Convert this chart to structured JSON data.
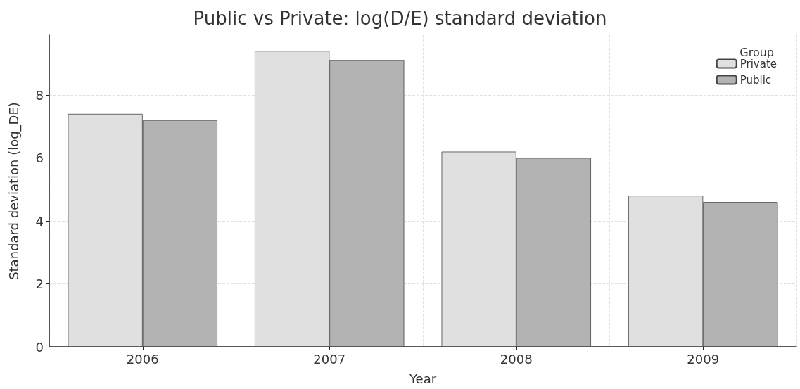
{
  "chart_data": {
    "type": "bar",
    "title": "Public vs Private: log(D/E) standard deviation",
    "xlabel": "Year",
    "ylabel": "Standard deviation (log_DE)",
    "legend_title": "Group",
    "categories": [
      "2006",
      "2007",
      "2008",
      "2009"
    ],
    "series": [
      {
        "name": "Private",
        "color": "#e0e0e0",
        "values": [
          7.4,
          9.4,
          6.2,
          4.8
        ]
      },
      {
        "name": "Public",
        "color": "#b3b3b3",
        "values": [
          7.2,
          9.1,
          6.0,
          4.6
        ]
      }
    ],
    "ylim": [
      0,
      9.9
    ],
    "yticks": [
      0,
      2,
      4,
      6,
      8
    ],
    "grid": true,
    "legend": "top right"
  }
}
